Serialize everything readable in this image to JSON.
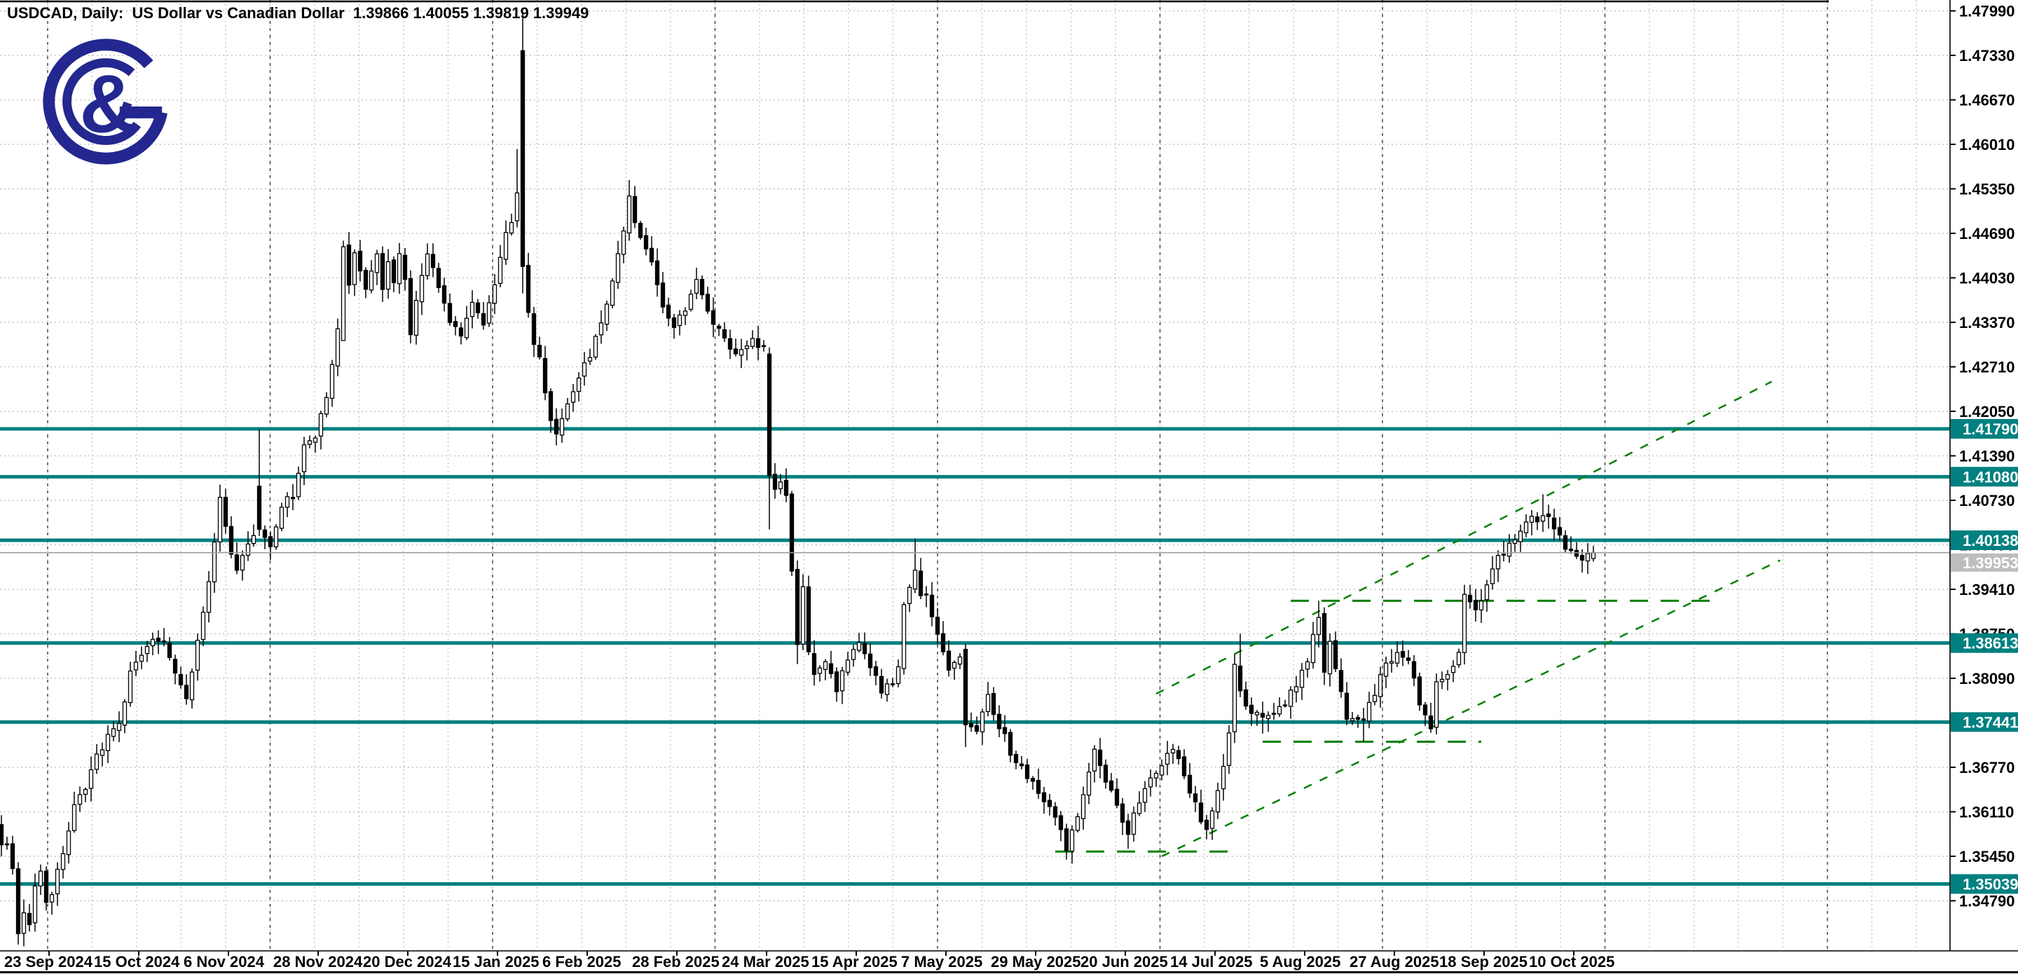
{
  "header": {
    "title": "USDCAD, Daily:  US Dollar vs Canadian Dollar  1.39866 1.40055 1.39819 1.39949"
  },
  "logo": {
    "name": "g-and-g-broker-logo",
    "color": "#23278f"
  },
  "chart_data": {
    "type": "candlestick",
    "symbol": "USDCAD",
    "timeframe": "Daily",
    "description": "US Dollar vs Canadian Dollar",
    "last_bar_ohlc": {
      "open": "1.39866",
      "high": "1.40055",
      "low": "1.39819",
      "close": "1.39949"
    },
    "current_price": "1.39953",
    "y_axis": {
      "ticks": [
        "1.47990",
        "1.47330",
        "1.46670",
        "1.46010",
        "1.45350",
        "1.44690",
        "1.44030",
        "1.43370",
        "1.42710",
        "1.42050",
        "1.41390",
        "1.40730",
        "1.40070",
        "1.39410",
        "1.38750",
        "1.38090",
        "1.37430",
        "1.36770",
        "1.36110",
        "1.35450",
        "1.34790"
      ],
      "step": 0.0066
    },
    "x_axis": {
      "labels": [
        "23 Sep 2024",
        "15 Oct 2024",
        "6 Nov 2024",
        "28 Nov 2024",
        "20 Dec 2024",
        "15 Jan 2025",
        "6 Feb 2025",
        "28 Feb 2025",
        "24 Mar 2025",
        "15 Apr 2025",
        "7 May 2025",
        "29 May 2025",
        "20 Jun 2025",
        "14 Jul 2025",
        "5 Aug 2025",
        "27 Aug 2025",
        "18 Sep 2025",
        "10 Oct 2025"
      ]
    },
    "levels": [
      {
        "price": "1.41790"
      },
      {
        "price": "1.41080"
      },
      {
        "price": "1.40138"
      },
      {
        "price": "1.38613"
      },
      {
        "price": "1.37441"
      },
      {
        "price": "1.35039"
      }
    ],
    "trendlines": [
      {
        "name": "channel-upper",
        "from_bar": 205,
        "from_price": 1.3786,
        "to_bar": 314.8,
        "to_price": 1.4249,
        "style": "rising"
      },
      {
        "name": "channel-lower",
        "from_bar": 206,
        "from_price": 1.3545,
        "to_bar": 316.3,
        "to_price": 1.3984,
        "style": "rising"
      },
      {
        "name": "support-june-lows",
        "from_bar": 187,
        "from_price": 1.3552,
        "to_bar": 219,
        "to_price": 1.3552,
        "style": "flat"
      },
      {
        "name": "resistance-aug-high",
        "from_bar": 229,
        "from_price": 1.3924,
        "to_bar": 306,
        "to_price": 1.3924,
        "style": "flat"
      },
      {
        "name": "support-aug-lows",
        "from_bar": 224,
        "from_price": 1.3715,
        "to_bar": 263,
        "to_price": 1.3715,
        "style": "flat"
      }
    ],
    "price_path": [
      [
        0,
        1.356
      ],
      [
        1,
        1.353
      ],
      [
        2,
        1.343
      ],
      [
        3,
        1.3468
      ],
      [
        4,
        1.3445
      ],
      [
        5,
        1.3502
      ],
      [
        6,
        1.352
      ],
      [
        7,
        1.3483
      ],
      [
        8,
        1.3492
      ],
      [
        10,
        1.3548
      ],
      [
        12,
        1.3615
      ],
      [
        14,
        1.365
      ],
      [
        16,
        1.369
      ],
      [
        18,
        1.372
      ],
      [
        20,
        1.3745
      ],
      [
        22,
        1.3813
      ],
      [
        24,
        1.385
      ],
      [
        26,
        1.387
      ],
      [
        28,
        1.3861
      ],
      [
        30,
        1.382
      ],
      [
        32,
        1.3774
      ],
      [
        34,
        1.386
      ],
      [
        36,
        1.395
      ],
      [
        38,
        1.4071
      ],
      [
        39,
        1.403
      ],
      [
        41,
        1.3966
      ],
      [
        43,
        1.4014
      ],
      [
        45,
        1.403
      ],
      [
        47,
        1.401
      ],
      [
        49,
        1.4065
      ],
      [
        51,
        1.408
      ],
      [
        53,
        1.4155
      ],
      [
        55,
        1.416
      ],
      [
        57,
        1.423
      ],
      [
        59,
        1.433
      ],
      [
        60,
        1.4449
      ],
      [
        61,
        1.439
      ],
      [
        62,
        1.444
      ],
      [
        63,
        1.442
      ],
      [
        64,
        1.438
      ],
      [
        65,
        1.441
      ],
      [
        66,
        1.444
      ],
      [
        67,
        1.438
      ],
      [
        68,
        1.443
      ],
      [
        69,
        1.439
      ],
      [
        70,
        1.4445
      ],
      [
        71,
        1.44
      ],
      [
        72,
        1.432
      ],
      [
        73,
        1.4365
      ],
      [
        75,
        1.444
      ],
      [
        77,
        1.439
      ],
      [
        79,
        1.434
      ],
      [
        81,
        1.431
      ],
      [
        83,
        1.437
      ],
      [
        85,
        1.434
      ],
      [
        87,
        1.439
      ],
      [
        89,
        1.447
      ],
      [
        90,
        1.449
      ],
      [
        91,
        1.4529
      ],
      [
        92,
        1.442
      ],
      [
        93,
        1.435
      ],
      [
        94,
        1.431
      ],
      [
        95,
        1.428
      ],
      [
        97,
        1.419
      ],
      [
        98,
        1.4172
      ],
      [
        100,
        1.421
      ],
      [
        102,
        1.426
      ],
      [
        104,
        1.429
      ],
      [
        106,
        1.433
      ],
      [
        108,
        1.44
      ],
      [
        110,
        1.447
      ],
      [
        111,
        1.452
      ],
      [
        113,
        1.446
      ],
      [
        115,
        1.442
      ],
      [
        117,
        1.436
      ],
      [
        119,
        1.433
      ],
      [
        121,
        1.436
      ],
      [
        123,
        1.4395
      ],
      [
        125,
        1.435
      ],
      [
        127,
        1.433
      ],
      [
        129,
        1.43
      ],
      [
        131,
        1.429
      ],
      [
        133,
        1.431
      ],
      [
        135,
        1.4295
      ],
      [
        136,
        1.411
      ],
      [
        137,
        1.4095
      ],
      [
        138,
        1.4105
      ],
      [
        139,
        1.4075
      ],
      [
        140,
        1.397
      ],
      [
        141,
        1.3857
      ],
      [
        142,
        1.3947
      ],
      [
        143,
        1.3847
      ],
      [
        144,
        1.3815
      ],
      [
        146,
        1.383
      ],
      [
        148,
        1.379
      ],
      [
        150,
        1.384
      ],
      [
        152,
        1.3865
      ],
      [
        154,
        1.383
      ],
      [
        156,
        1.379
      ],
      [
        158,
        1.38
      ],
      [
        159,
        1.3825
      ],
      [
        160,
        1.3925
      ],
      [
        161,
        1.3949
      ],
      [
        162,
        1.3975
      ],
      [
        163,
        1.3935
      ],
      [
        164,
        1.393
      ],
      [
        166,
        1.388
      ],
      [
        168,
        1.3825
      ],
      [
        170,
        1.384
      ],
      [
        171,
        1.374
      ],
      [
        173,
        1.3735
      ],
      [
        175,
        1.378
      ],
      [
        177,
        1.374
      ],
      [
        179,
        1.37
      ],
      [
        181,
        1.3675
      ],
      [
        183,
        1.3655
      ],
      [
        185,
        1.363
      ],
      [
        187,
        1.36
      ],
      [
        189,
        1.356
      ],
      [
        191,
        1.36
      ],
      [
        193,
        1.367
      ],
      [
        194,
        1.3698
      ],
      [
        196,
        1.366
      ],
      [
        198,
        1.3625
      ],
      [
        200,
        1.3575
      ],
      [
        202,
        1.363
      ],
      [
        204,
        1.3665
      ],
      [
        206,
        1.3685
      ],
      [
        208,
        1.371
      ],
      [
        210,
        1.367
      ],
      [
        212,
        1.362
      ],
      [
        214,
        1.3585
      ],
      [
        216,
        1.3645
      ],
      [
        218,
        1.3725
      ],
      [
        219,
        1.3826
      ],
      [
        220,
        1.3786
      ],
      [
        222,
        1.376
      ],
      [
        224,
        1.3745
      ],
      [
        226,
        1.3755
      ],
      [
        228,
        1.3775
      ],
      [
        230,
        1.38
      ],
      [
        232,
        1.383
      ],
      [
        234,
        1.3905
      ],
      [
        235,
        1.3818
      ],
      [
        236,
        1.3858
      ],
      [
        238,
        1.3786
      ],
      [
        239,
        1.3744
      ],
      [
        240,
        1.375
      ],
      [
        242,
        1.3745
      ],
      [
        244,
        1.379
      ],
      [
        246,
        1.383
      ],
      [
        248,
        1.385
      ],
      [
        250,
        1.384
      ],
      [
        252,
        1.3766
      ],
      [
        254,
        1.3732
      ],
      [
        255,
        1.3804
      ],
      [
        257,
        1.3817
      ],
      [
        259,
        1.385
      ],
      [
        260,
        1.394
      ],
      [
        262,
        1.3911
      ],
      [
        264,
        1.395
      ],
      [
        266,
        1.399
      ],
      [
        268,
        1.401
      ],
      [
        270,
        1.403
      ],
      [
        272,
        1.4045
      ],
      [
        274,
        1.405
      ],
      [
        276,
        1.4035
      ],
      [
        278,
        1.4
      ],
      [
        280,
        1.3985
      ],
      [
        282,
        1.399
      ],
      [
        283,
        1.39949
      ]
    ],
    "special_bars": {
      "45": {
        "o": 1.4094,
        "h": 1.4178,
        "l": 1.402,
        "c": 1.403
      },
      "60": {
        "o": 1.431,
        "c": 1.4449
      },
      "91": {
        "h": 1.4594,
        "c": 1.4529
      },
      "92": {
        "o": 1.474,
        "h": 1.4795,
        "l": 1.438,
        "c": 1.442
      },
      "111": {
        "h": 1.4548
      },
      "136": {
        "o": 1.429,
        "h": 1.43,
        "l": 1.403,
        "c": 1.411
      },
      "141": {
        "l": 1.383
      },
      "162": {
        "h": 1.4016
      },
      "171": {
        "o": 1.3852,
        "h": 1.386,
        "l": 1.3707,
        "c": 1.374
      },
      "189": {
        "l": 1.354
      },
      "200": {
        "l": 1.3556
      },
      "214": {
        "l": 1.357
      },
      "220": {
        "h": 1.3875
      },
      "224": {
        "l": 1.3727
      },
      "234": {
        "h": 1.3924
      },
      "235": {
        "o": 1.3905,
        "c": 1.3818
      },
      "242": {
        "l": 1.3715
      },
      "254": {
        "l": 1.3728
      },
      "274": {
        "h": 1.4082
      },
      "283": {
        "o": 1.39866,
        "h": 1.40055,
        "l": 1.39819,
        "c": 1.39949
      }
    },
    "colors": {
      "level_teal": "#008080",
      "trend_green": "#008000",
      "bull": "#ffffff",
      "bear": "#000000",
      "outline": "#000000",
      "grid": "#c6c6c6",
      "separator": "#3a3a3a",
      "axis_text": "#000000",
      "badge_text": "#ffffff",
      "current_line": "#9a9a9a",
      "current_badge_bg": "#bdbdbd",
      "border": "#000000"
    },
    "legend_position": "none",
    "grid": true
  }
}
